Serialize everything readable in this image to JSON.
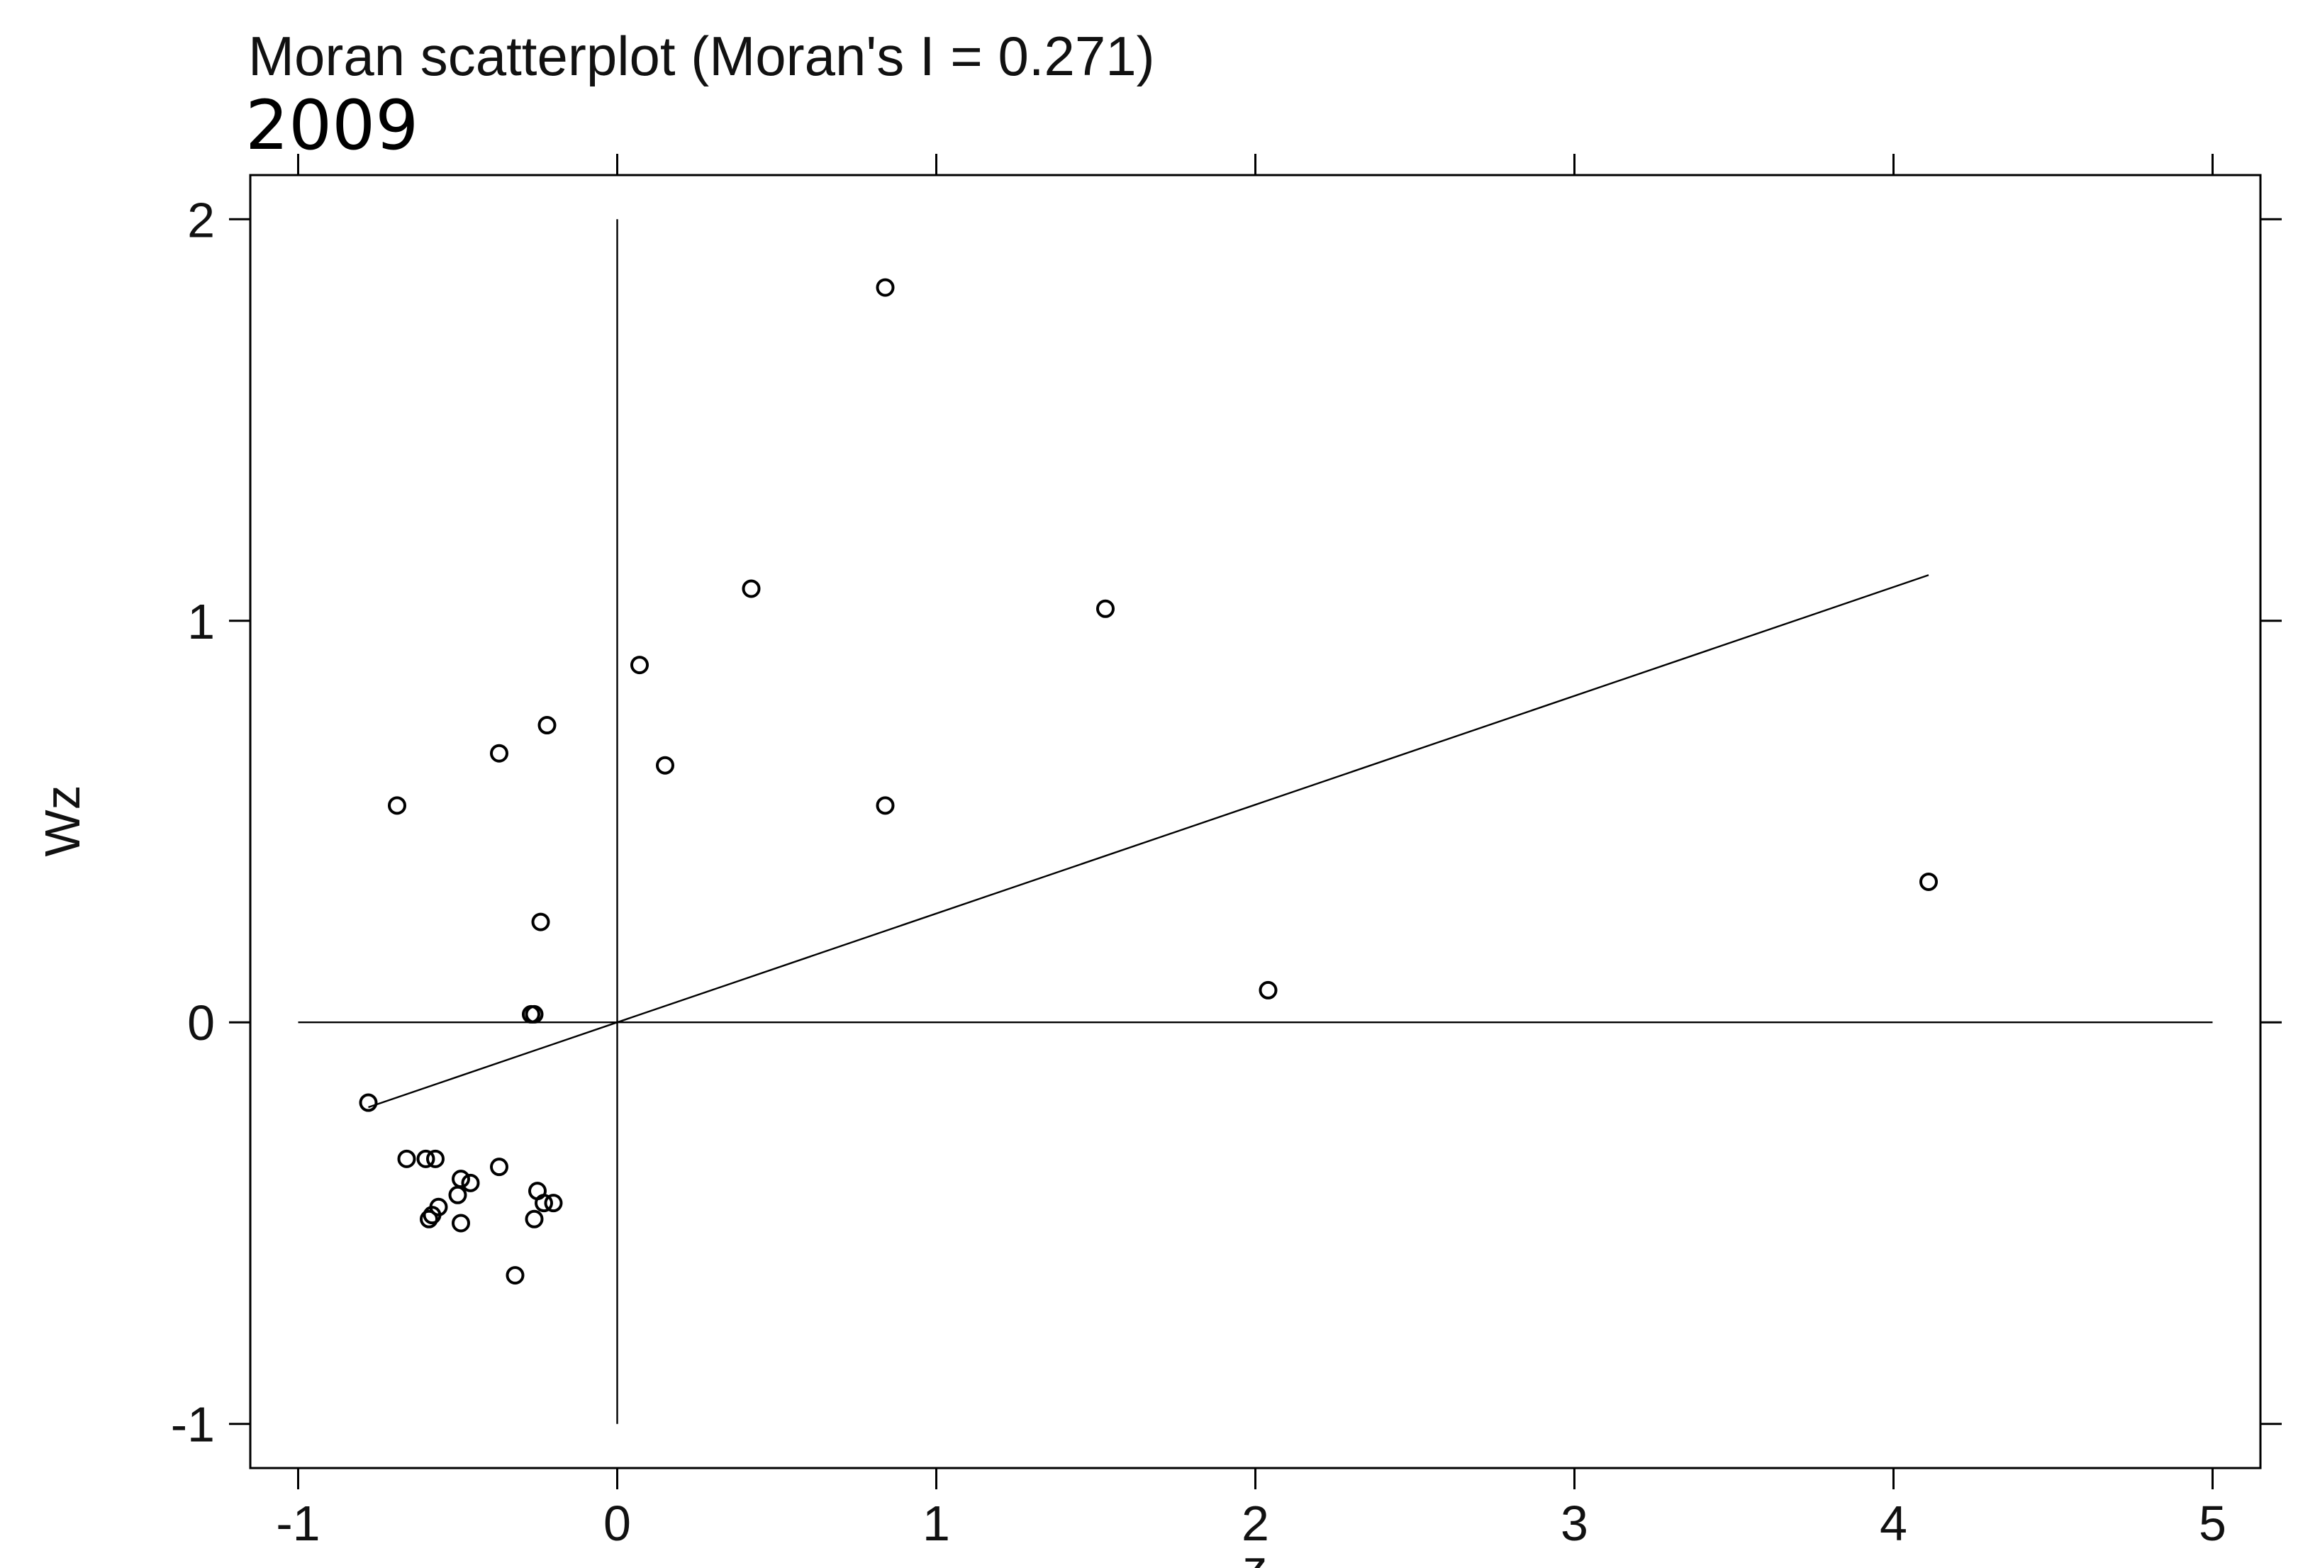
{
  "chart_data": {
    "type": "scatter",
    "title": "Moran scatterplot (Moran's I = 0.271)",
    "subtitle": "2009",
    "xlabel": "z",
    "ylabel": "Wz",
    "xlim": [
      -1.15,
      5.15
    ],
    "ylim": [
      -1.11,
      2.11
    ],
    "xticks": [
      -1,
      0,
      1,
      2,
      3,
      4,
      5
    ],
    "yticks": [
      -1,
      0,
      1,
      2
    ],
    "reference_lines": {
      "x": 0,
      "y": 0
    },
    "fit_line": {
      "slope": 0.271,
      "intercept": 0.0,
      "x_range": [
        -0.78,
        4.11
      ]
    },
    "points": [
      {
        "x": 0.84,
        "y": 1.83
      },
      {
        "x": 0.42,
        "y": 1.08
      },
      {
        "x": 1.53,
        "y": 1.03
      },
      {
        "x": 0.07,
        "y": 0.89
      },
      {
        "x": -0.22,
        "y": 0.74
      },
      {
        "x": -0.37,
        "y": 0.67
      },
      {
        "x": 0.15,
        "y": 0.64
      },
      {
        "x": -0.69,
        "y": 0.54
      },
      {
        "x": 0.84,
        "y": 0.54
      },
      {
        "x": 4.11,
        "y": 0.35
      },
      {
        "x": -0.24,
        "y": 0.25
      },
      {
        "x": 2.04,
        "y": 0.08
      },
      {
        "x": -0.26,
        "y": 0.02
      },
      {
        "x": -0.27,
        "y": 0.02
      },
      {
        "x": -0.78,
        "y": -0.2
      },
      {
        "x": -0.66,
        "y": -0.34
      },
      {
        "x": -0.6,
        "y": -0.34
      },
      {
        "x": -0.57,
        "y": -0.34
      },
      {
        "x": -0.37,
        "y": -0.36
      },
      {
        "x": -0.49,
        "y": -0.39
      },
      {
        "x": -0.46,
        "y": -0.4
      },
      {
        "x": -0.5,
        "y": -0.43
      },
      {
        "x": -0.25,
        "y": -0.42
      },
      {
        "x": -0.56,
        "y": -0.46
      },
      {
        "x": -0.58,
        "y": -0.48
      },
      {
        "x": -0.23,
        "y": -0.45
      },
      {
        "x": -0.2,
        "y": -0.45
      },
      {
        "x": -0.59,
        "y": -0.49
      },
      {
        "x": -0.49,
        "y": -0.5
      },
      {
        "x": -0.26,
        "y": -0.49
      },
      {
        "x": -0.32,
        "y": -0.63
      }
    ]
  }
}
